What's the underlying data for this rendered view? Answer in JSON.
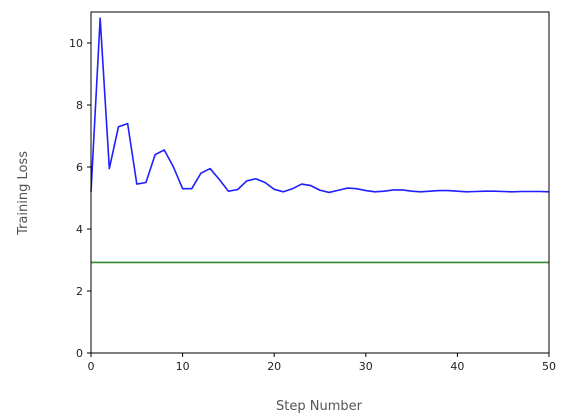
{
  "chart_data": {
    "type": "line",
    "xlabel": "Step Number",
    "ylabel": "Training Loss",
    "xlim": [
      0,
      50
    ],
    "ylim": [
      0,
      11
    ],
    "x_ticks": [
      0,
      10,
      20,
      30,
      40,
      50
    ],
    "y_ticks": [
      0,
      2,
      4,
      6,
      8,
      10
    ],
    "x_tick_labels": [
      "0",
      "10",
      "20",
      "30",
      "40",
      "50"
    ],
    "y_tick_labels": [
      "0",
      "2",
      "4",
      "6",
      "8",
      "10"
    ],
    "grid": false,
    "series": [
      {
        "color": "#1f1fff",
        "x": [
          0,
          1,
          2,
          3,
          4,
          5,
          6,
          7,
          8,
          9,
          10,
          11,
          12,
          13,
          14,
          15,
          16,
          17,
          18,
          19,
          20,
          21,
          22,
          23,
          24,
          25,
          26,
          27,
          28,
          29,
          30,
          31,
          32,
          33,
          34,
          35,
          36,
          37,
          38,
          39,
          40,
          41,
          42,
          43,
          44,
          45,
          46,
          47,
          48,
          49,
          50
        ],
        "y": [
          5.2,
          10.8,
          5.95,
          7.3,
          7.4,
          5.45,
          5.5,
          6.4,
          6.55,
          6.0,
          5.3,
          5.3,
          5.8,
          5.95,
          5.6,
          5.22,
          5.27,
          5.55,
          5.62,
          5.5,
          5.28,
          5.2,
          5.3,
          5.45,
          5.4,
          5.25,
          5.18,
          5.25,
          5.32,
          5.3,
          5.24,
          5.2,
          5.22,
          5.26,
          5.26,
          5.22,
          5.2,
          5.22,
          5.24,
          5.24,
          5.22,
          5.2,
          5.21,
          5.22,
          5.22,
          5.21,
          5.2,
          5.21,
          5.21,
          5.21,
          5.2
        ]
      },
      {
        "color": "#2e8b2e",
        "x": [
          0,
          50
        ],
        "y": [
          2.92,
          2.92
        ]
      }
    ]
  }
}
